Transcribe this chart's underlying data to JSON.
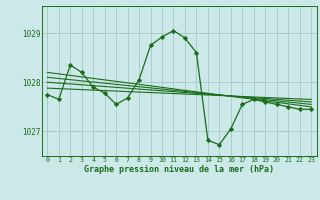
{
  "title": "Graphe pression niveau de la mer (hPa)",
  "bg_color": "#cde8e8",
  "grid_color": "#aacccc",
  "line_color": "#1a6e1a",
  "marker_color": "#1a6e1a",
  "xlim": [
    -0.5,
    23.5
  ],
  "ylim": [
    1026.5,
    1029.55
  ],
  "yticks": [
    1027,
    1028,
    1029
  ],
  "xticks": [
    0,
    1,
    2,
    3,
    4,
    5,
    6,
    7,
    8,
    9,
    10,
    11,
    12,
    13,
    14,
    15,
    16,
    17,
    18,
    19,
    20,
    21,
    22,
    23
  ],
  "series1": {
    "x": [
      0,
      1,
      2,
      3,
      4,
      5,
      6,
      7,
      8,
      9,
      10,
      11,
      12,
      13,
      14,
      15,
      16,
      17,
      18,
      19,
      20,
      21,
      22,
      23
    ],
    "y": [
      1027.75,
      1027.65,
      1028.35,
      1028.2,
      1027.9,
      1027.78,
      1027.55,
      1027.68,
      1028.05,
      1028.75,
      1028.92,
      1029.05,
      1028.9,
      1028.6,
      1026.82,
      1026.73,
      1027.05,
      1027.55,
      1027.65,
      1027.6,
      1027.55,
      1027.5,
      1027.45,
      1027.45
    ]
  },
  "series2": {
    "x": [
      0,
      23
    ],
    "y": [
      1028.2,
      1027.5
    ]
  },
  "series3": {
    "x": [
      0,
      23
    ],
    "y": [
      1028.1,
      1027.55
    ]
  },
  "series4": {
    "x": [
      0,
      23
    ],
    "y": [
      1028.0,
      1027.6
    ]
  },
  "series5": {
    "x": [
      0,
      23
    ],
    "y": [
      1027.88,
      1027.65
    ]
  }
}
